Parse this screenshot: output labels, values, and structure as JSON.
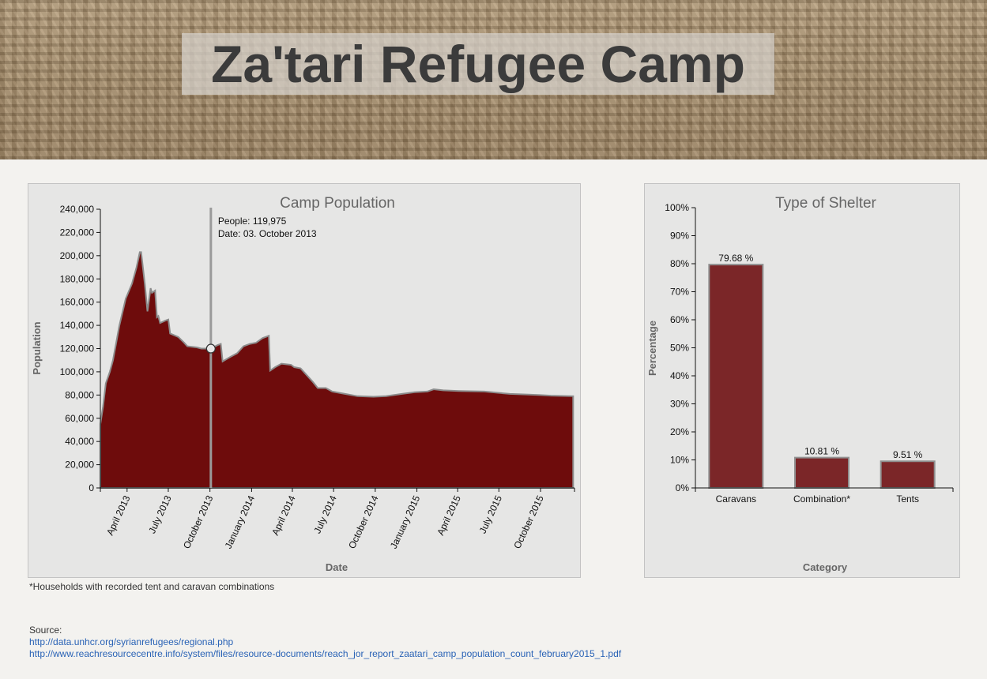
{
  "header": {
    "title": "Za'tari Refugee Camp"
  },
  "chart_data": [
    {
      "type": "area",
      "title": "Camp Population",
      "xlabel": "Date",
      "ylabel": "Population",
      "ylim": [
        0,
        240000
      ],
      "xlim": [
        "2013-02-01",
        "2015-12-15"
      ],
      "yticks": [
        "0",
        "20,000",
        "40,000",
        "60,000",
        "80,000",
        "100,000",
        "120,000",
        "140,000",
        "160,000",
        "180,000",
        "200,000",
        "220,000",
        "240,000"
      ],
      "xticks": [
        {
          "label": "April 2013",
          "date": "2013-04-01"
        },
        {
          "label": "July 2013",
          "date": "2013-07-01"
        },
        {
          "label": "October 2013",
          "date": "2013-10-01"
        },
        {
          "label": "January 2014",
          "date": "2014-01-01"
        },
        {
          "label": "April 2014",
          "date": "2014-04-01"
        },
        {
          "label": "July 2014",
          "date": "2014-07-01"
        },
        {
          "label": "October 2014",
          "date": "2014-10-01"
        },
        {
          "label": "January 2015",
          "date": "2015-01-01"
        },
        {
          "label": "April 2015",
          "date": "2015-04-01"
        },
        {
          "label": "July 2015",
          "date": "2015-07-01"
        },
        {
          "label": "October 2015",
          "date": "2015-10-01"
        }
      ],
      "series": [
        {
          "color": "#6e0c0c",
          "points": [
            [
              "2013-02-01",
              55000
            ],
            [
              "2013-02-07",
              70000
            ],
            [
              "2013-02-13",
              90000
            ],
            [
              "2013-02-22",
              100000
            ],
            [
              "2013-03-01",
              110000
            ],
            [
              "2013-03-15",
              140000
            ],
            [
              "2013-03-29",
              163000
            ],
            [
              "2013-04-12",
              176000
            ],
            [
              "2013-04-22",
              190000
            ],
            [
              "2013-04-29",
              203000
            ],
            [
              "2013-05-02",
              203000
            ],
            [
              "2013-05-10",
              176000
            ],
            [
              "2013-05-16",
              152000
            ],
            [
              "2013-05-23",
              172000
            ],
            [
              "2013-05-26",
              168000
            ],
            [
              "2013-06-02",
              170000
            ],
            [
              "2013-06-06",
              147000
            ],
            [
              "2013-06-09",
              148000
            ],
            [
              "2013-06-13",
              142000
            ],
            [
              "2013-06-24",
              144000
            ],
            [
              "2013-07-01",
              145000
            ],
            [
              "2013-07-05",
              133000
            ],
            [
              "2013-07-23",
              130000
            ],
            [
              "2013-08-05",
              125000
            ],
            [
              "2013-08-12",
              122000
            ],
            [
              "2013-09-02",
              121000
            ],
            [
              "2013-09-12",
              120000
            ],
            [
              "2013-10-03",
              119975
            ],
            [
              "2013-10-18",
              123000
            ],
            [
              "2013-10-25",
              124000
            ],
            [
              "2013-10-29",
              109000
            ],
            [
              "2013-11-16",
              113000
            ],
            [
              "2013-11-30",
              116000
            ],
            [
              "2013-12-14",
              122000
            ],
            [
              "2013-12-28",
              124000
            ],
            [
              "2014-01-11",
              125000
            ],
            [
              "2014-01-25",
              129000
            ],
            [
              "2014-02-08",
              131000
            ],
            [
              "2014-02-11",
              101000
            ],
            [
              "2014-02-22",
              104000
            ],
            [
              "2014-03-08",
              107000
            ],
            [
              "2014-03-29",
              106000
            ],
            [
              "2014-04-05",
              104000
            ],
            [
              "2014-04-19",
              103000
            ],
            [
              "2014-05-03",
              97000
            ],
            [
              "2014-05-17",
              91000
            ],
            [
              "2014-05-27",
              86000
            ],
            [
              "2014-06-14",
              86000
            ],
            [
              "2014-06-28",
              83000
            ],
            [
              "2014-07-26",
              81000
            ],
            [
              "2014-08-23",
              79000
            ],
            [
              "2014-09-27",
              78500
            ],
            [
              "2014-10-25",
              79000
            ],
            [
              "2014-11-29",
              81000
            ],
            [
              "2014-12-27",
              82500
            ],
            [
              "2015-01-24",
              83000
            ],
            [
              "2015-02-07",
              85000
            ],
            [
              "2015-02-28",
              84000
            ],
            [
              "2015-04-04",
              83500
            ],
            [
              "2015-05-30",
              83000
            ],
            [
              "2015-06-27",
              82000
            ],
            [
              "2015-07-25",
              81000
            ],
            [
              "2015-08-29",
              80500
            ],
            [
              "2015-09-26",
              80000
            ],
            [
              "2015-10-24",
              79500
            ],
            [
              "2015-12-12",
              79000
            ]
          ]
        }
      ],
      "tooltip": {
        "date": "2013-10-03",
        "value": 119975,
        "people_text": "People: 119,975",
        "date_text": "Date: 03. October 2013"
      }
    },
    {
      "type": "bar",
      "title": "Type of Shelter",
      "xlabel": "Category",
      "ylabel": "Percentage",
      "ylim": [
        0,
        100
      ],
      "yticks": [
        "0%",
        "10%",
        "20%",
        "30%",
        "40%",
        "50%",
        "60%",
        "70%",
        "80%",
        "90%",
        "100%"
      ],
      "categories": [
        "Caravans",
        "Combination*",
        "Tents"
      ],
      "values": [
        79.68,
        10.81,
        9.51
      ],
      "labels": [
        "79.68 %",
        "10.81 %",
        "9.51 %"
      ],
      "bar_color": "#7b2628"
    }
  ],
  "footnote": "*Households with recorded tent and caravan combinations",
  "source": {
    "label": "Source:",
    "links": [
      "http://data.unhcr.org/syrianrefugees/regional.php",
      "http://www.reachresourcecentre.info/system/files/resource-documents/reach_jor_report_zaatari_camp_population_count_february2015_1.pdf"
    ]
  }
}
